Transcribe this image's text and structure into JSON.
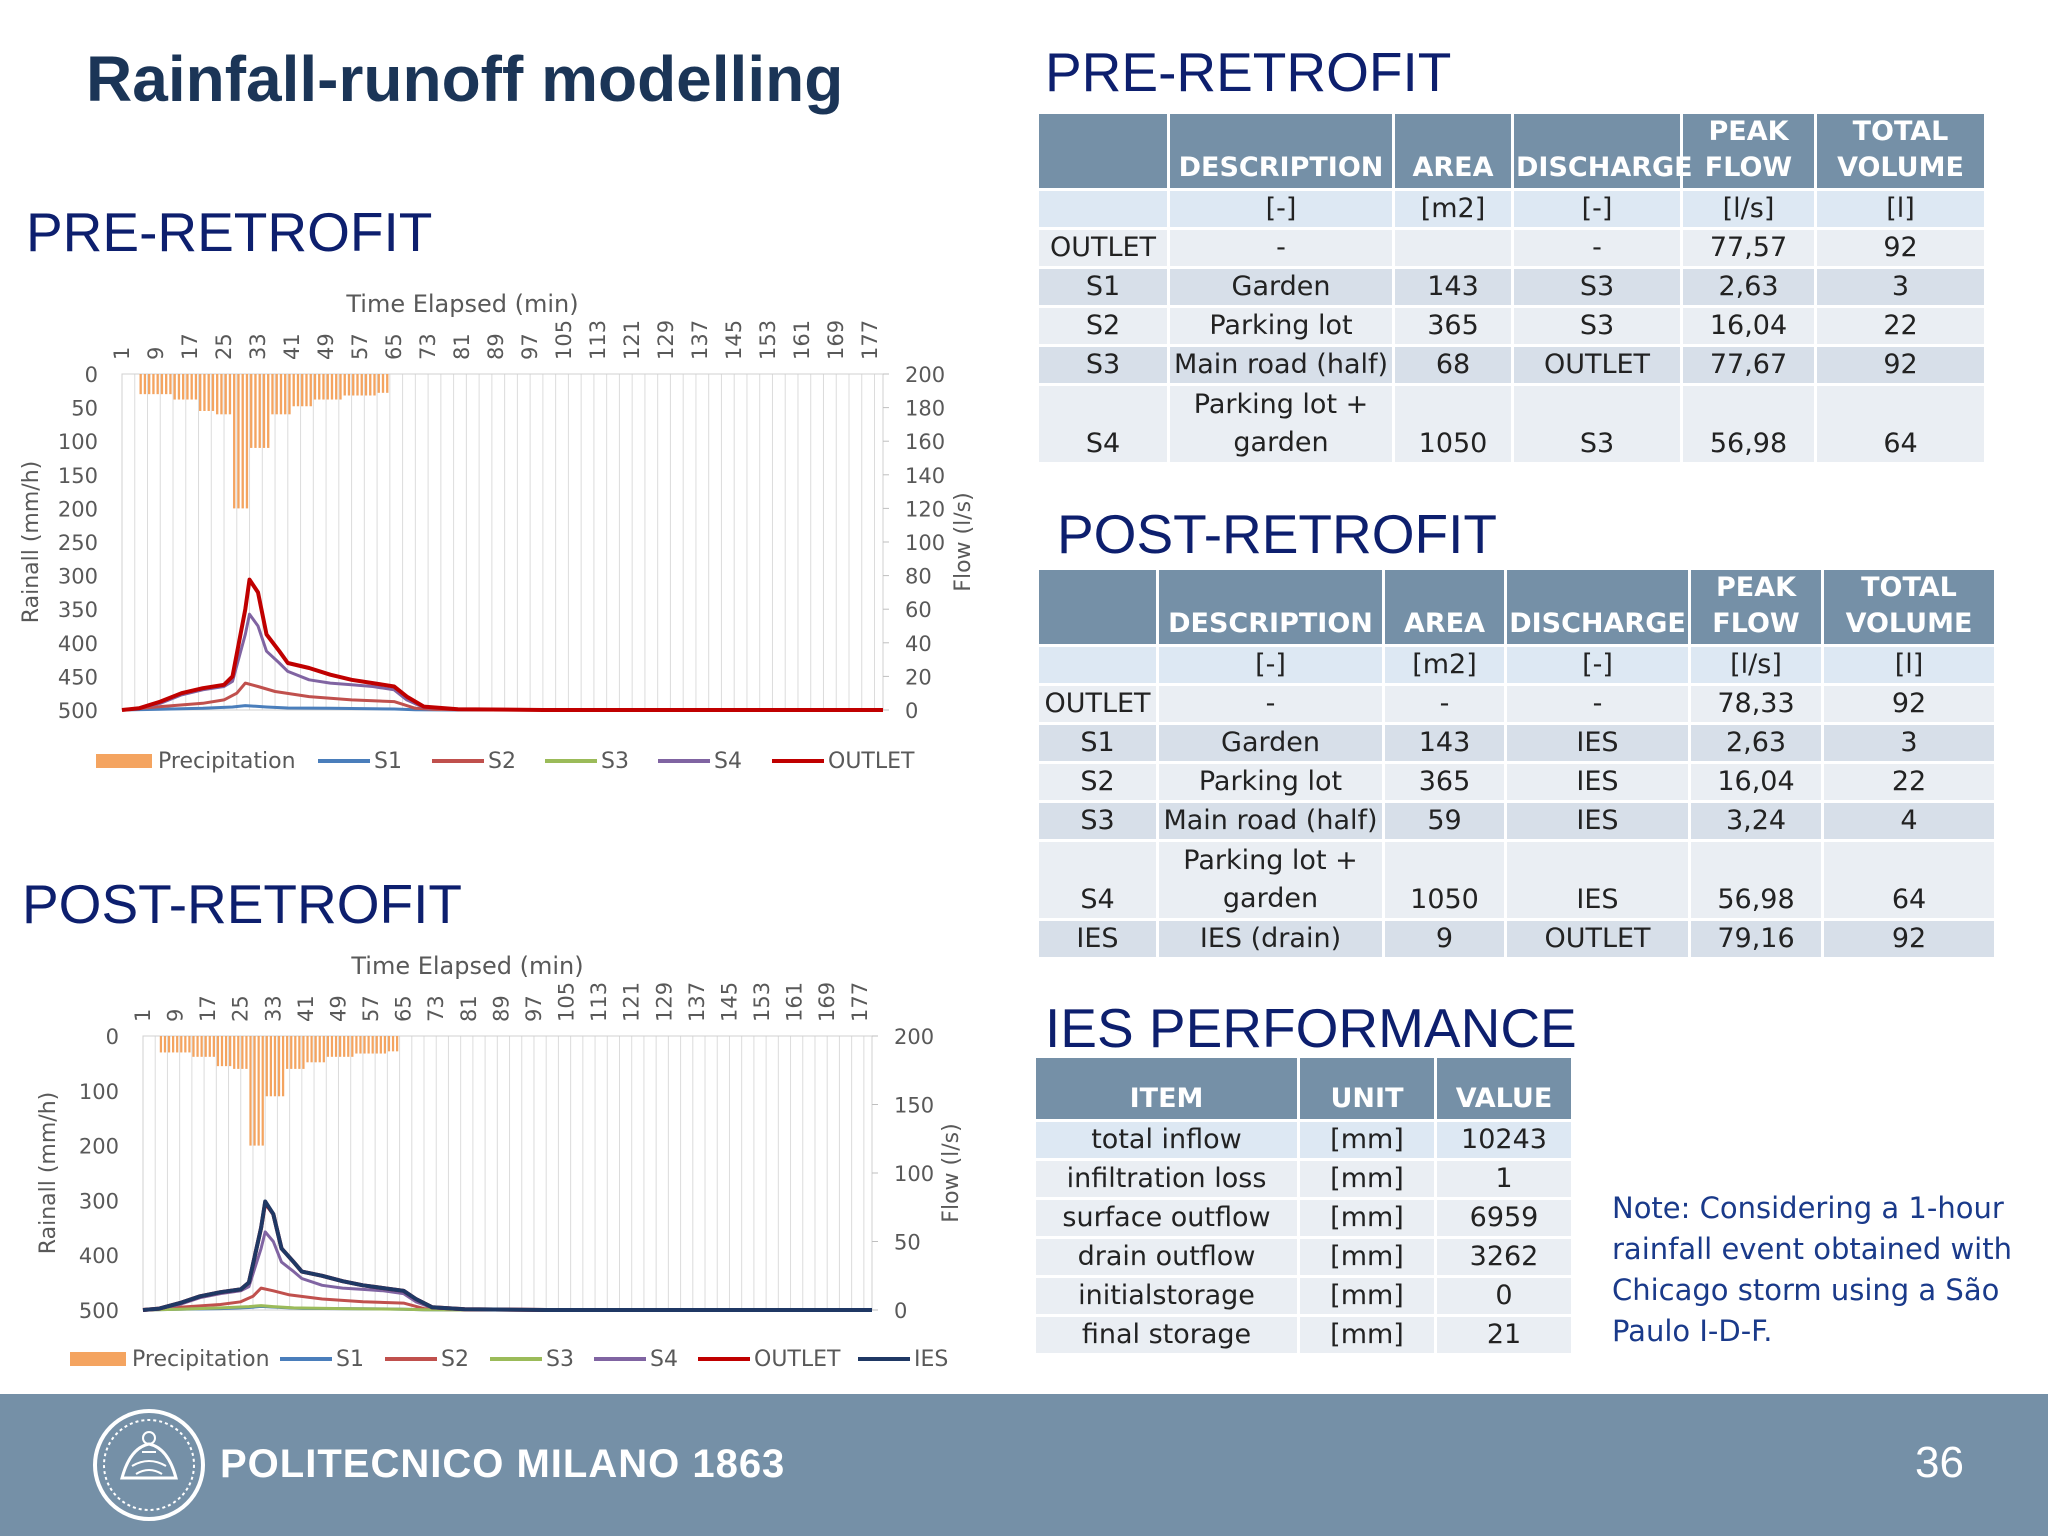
{
  "slide": {
    "title": "Rainfall-runoff modelling",
    "page_number": "36",
    "footer_brand": "POLITECNICO MILANO 1863",
    "note": "Note: Considering a 1-hour rainfall event obtained with Chicago storm using a São Paulo I-D-F."
  },
  "sections": {
    "pre_left": "PRE-RETROFIT",
    "post_left": "POST-RETROFIT",
    "pre_table": "PRE-RETROFIT",
    "post_table": "POST-RETROFIT",
    "ies": "IES PERFORMANCE"
  },
  "colors": {
    "header_fill": "#7590a7",
    "precipitation": "#f4a460",
    "S1": "#4a7ebb",
    "S2": "#c0504d",
    "S3": "#9bbb59",
    "S4": "#8064a2",
    "OUTLET": "#c00000",
    "IES": "#1f3864"
  },
  "pre_table": {
    "headers": [
      "",
      "DESCRIPTION",
      "AREA",
      "DISCHARGE",
      "PEAK FLOW",
      "TOTAL VOLUME"
    ],
    "rows": [
      [
        "",
        "[-]",
        "[m2]",
        "[-]",
        "[l/s]",
        "[l]"
      ],
      [
        "OUTLET",
        "-",
        "",
        "-",
        "77,57",
        "92"
      ],
      [
        "S1",
        "Garden",
        "143",
        "S3",
        "2,63",
        "3"
      ],
      [
        "S2",
        "Parking lot",
        "365",
        "S3",
        "16,04",
        "22"
      ],
      [
        "S3",
        "Main road (half)",
        "68",
        "OUTLET",
        "77,67",
        "92"
      ],
      [
        "S4",
        "Parking lot + garden",
        "1050",
        "S3",
        "56,98",
        "64"
      ]
    ]
  },
  "post_table": {
    "headers": [
      "",
      "DESCRIPTION",
      "AREA",
      "DISCHARGE",
      "PEAK FLOW",
      "TOTAL VOLUME"
    ],
    "rows": [
      [
        "",
        "[-]",
        "[m2]",
        "[-]",
        "[l/s]",
        "[l]"
      ],
      [
        "OUTLET",
        "-",
        "-",
        "-",
        "78,33",
        "92"
      ],
      [
        "S1",
        "Garden",
        "143",
        "IES",
        "2,63",
        "3"
      ],
      [
        "S2",
        "Parking lot",
        "365",
        "IES",
        "16,04",
        "22"
      ],
      [
        "S3",
        "Main road (half)",
        "59",
        "IES",
        "3,24",
        "4"
      ],
      [
        "S4",
        "Parking lot + garden",
        "1050",
        "IES",
        "56,98",
        "64"
      ],
      [
        "IES",
        "IES (drain)",
        "9",
        "OUTLET",
        "79,16",
        "92"
      ]
    ]
  },
  "ies_table": {
    "headers": [
      "ITEM",
      "UNIT",
      "VALUE"
    ],
    "rows": [
      [
        "total inflow",
        "[mm]",
        "10243"
      ],
      [
        "infiltration loss",
        "[mm]",
        "1"
      ],
      [
        "surface outflow",
        "[mm]",
        "6959"
      ],
      [
        "drain outflow",
        "[mm]",
        "3262"
      ],
      [
        "initialstorage",
        "[mm]",
        "0"
      ],
      [
        "final storage",
        "[mm]",
        "21"
      ]
    ]
  },
  "chart_data": [
    {
      "type": "bar+line",
      "title": "",
      "xlabel": "Time Elapsed (min)",
      "ylabel_left": "Rainall (mm/h)",
      "ylabel_right": "Flow (l/s)",
      "x_ticks": [
        "1",
        "9",
        "17",
        "25",
        "33",
        "41",
        "49",
        "57",
        "65",
        "73",
        "81",
        "89",
        "97",
        "105",
        "113",
        "121",
        "129",
        "137",
        "145",
        "153",
        "161",
        "169",
        "177"
      ],
      "x_range": [
        1,
        180
      ],
      "left_ticks": [
        "0",
        "50",
        "100",
        "150",
        "200",
        "250",
        "300",
        "350",
        "400",
        "450",
        "500"
      ],
      "left_range": [
        0,
        500
      ],
      "left_inverted": true,
      "right_ticks": [
        "0",
        "20",
        "40",
        "60",
        "80",
        "100",
        "120",
        "140",
        "160",
        "180",
        "200"
      ],
      "right_range": [
        0,
        200
      ],
      "legend_position": "bottom",
      "legend": [
        "Precipitation",
        "S1",
        "S2",
        "S3",
        "S4",
        "OUTLET"
      ],
      "precipitation": {
        "name": "Precipitation",
        "blocks": [
          {
            "x_start": 5,
            "x_end": 13,
            "value": 30
          },
          {
            "x_start": 13,
            "x_end": 19,
            "value": 38
          },
          {
            "x_start": 19,
            "x_end": 23,
            "value": 55
          },
          {
            "x_start": 23,
            "x_end": 27,
            "value": 60
          },
          {
            "x_start": 27,
            "x_end": 31,
            "value": 200
          },
          {
            "x_start": 31,
            "x_end": 36,
            "value": 110
          },
          {
            "x_start": 36,
            "x_end": 41,
            "value": 60
          },
          {
            "x_start": 41,
            "x_end": 46,
            "value": 48
          },
          {
            "x_start": 46,
            "x_end": 53,
            "value": 38
          },
          {
            "x_start": 53,
            "x_end": 61,
            "value": 32
          },
          {
            "x_start": 61,
            "x_end": 64,
            "value": 28
          }
        ]
      },
      "series": [
        {
          "name": "S1",
          "x": [
            1,
            10,
            20,
            27,
            30,
            35,
            40,
            50,
            60,
            65,
            70,
            80,
            100,
            180
          ],
          "y": [
            0,
            0.5,
            1,
            1.8,
            2.6,
            1.8,
            1.2,
            1,
            0.8,
            0.6,
            0.2,
            0,
            0,
            0
          ]
        },
        {
          "name": "S2",
          "x": [
            1,
            10,
            20,
            25,
            28,
            30,
            33,
            37,
            45,
            55,
            65,
            70,
            75,
            100,
            180
          ],
          "y": [
            0,
            2,
            4,
            6,
            10,
            16,
            14,
            11,
            8,
            6,
            5,
            1,
            0.3,
            0,
            0
          ]
        },
        {
          "name": "S3",
          "x": [
            1,
            5,
            10,
            15,
            20,
            25,
            27,
            30,
            31,
            33,
            35,
            38,
            40,
            45,
            50,
            55,
            60,
            65,
            68,
            72,
            80,
            100,
            180
          ],
          "y": [
            0,
            1,
            5,
            10,
            13,
            15,
            20,
            60,
            77.7,
            70,
            45,
            35,
            28,
            25,
            21,
            18,
            16,
            14,
            8,
            2,
            0.5,
            0,
            0
          ]
        },
        {
          "name": "S4",
          "x": [
            1,
            5,
            10,
            15,
            20,
            25,
            27,
            30,
            31,
            33,
            35,
            38,
            40,
            45,
            50,
            55,
            60,
            65,
            68,
            72,
            80,
            100,
            180
          ],
          "y": [
            0,
            1,
            4,
            9,
            12,
            14,
            17,
            45,
            57,
            50,
            35,
            28,
            23,
            18,
            16,
            15,
            14,
            12,
            6,
            1.5,
            0.3,
            0,
            0
          ]
        },
        {
          "name": "OUTLET",
          "x": [
            1,
            5,
            10,
            15,
            20,
            25,
            27,
            30,
            31,
            33,
            35,
            38,
            40,
            45,
            50,
            55,
            60,
            65,
            68,
            72,
            80,
            100,
            180
          ],
          "y": [
            0,
            1,
            5,
            10,
            13,
            15,
            20,
            60,
            77.6,
            70,
            45,
            35,
            28,
            25,
            21,
            18,
            16,
            14,
            8,
            2,
            0.5,
            0,
            0
          ]
        }
      ]
    },
    {
      "type": "bar+line",
      "title": "",
      "xlabel": "Time Elapsed (min)",
      "ylabel_left": "Rainall (mm/h)",
      "ylabel_right": "Flow (l/s)",
      "x_ticks": [
        "1",
        "9",
        "17",
        "25",
        "33",
        "41",
        "49",
        "57",
        "65",
        "73",
        "81",
        "89",
        "97",
        "105",
        "113",
        "121",
        "129",
        "137",
        "145",
        "153",
        "161",
        "169",
        "177"
      ],
      "x_range": [
        1,
        180
      ],
      "left_ticks": [
        "0",
        "100",
        "200",
        "300",
        "400",
        "500"
      ],
      "left_range": [
        0,
        500
      ],
      "left_inverted": true,
      "right_ticks": [
        "0",
        "50",
        "100",
        "150",
        "200"
      ],
      "right_range": [
        0,
        200
      ],
      "legend_position": "bottom",
      "legend": [
        "Precipitation",
        "S1",
        "S2",
        "S3",
        "S4",
        "OUTLET",
        "IES"
      ],
      "precipitation": {
        "name": "Precipitation",
        "blocks": [
          {
            "x_start": 5,
            "x_end": 13,
            "value": 30
          },
          {
            "x_start": 13,
            "x_end": 19,
            "value": 38
          },
          {
            "x_start": 19,
            "x_end": 23,
            "value": 55
          },
          {
            "x_start": 23,
            "x_end": 27,
            "value": 60
          },
          {
            "x_start": 27,
            "x_end": 31,
            "value": 200
          },
          {
            "x_start": 31,
            "x_end": 36,
            "value": 110
          },
          {
            "x_start": 36,
            "x_end": 41,
            "value": 60
          },
          {
            "x_start": 41,
            "x_end": 46,
            "value": 48
          },
          {
            "x_start": 46,
            "x_end": 53,
            "value": 38
          },
          {
            "x_start": 53,
            "x_end": 61,
            "value": 32
          },
          {
            "x_start": 61,
            "x_end": 64,
            "value": 28
          }
        ]
      },
      "series": [
        {
          "name": "S1",
          "x": [
            1,
            10,
            20,
            27,
            30,
            35,
            40,
            50,
            60,
            65,
            70,
            80,
            100,
            180
          ],
          "y": [
            0,
            0.5,
            1,
            1.8,
            2.6,
            1.8,
            1.2,
            1,
            0.8,
            0.6,
            0.2,
            0,
            0,
            0
          ]
        },
        {
          "name": "S2",
          "x": [
            1,
            10,
            20,
            25,
            28,
            30,
            33,
            37,
            45,
            55,
            65,
            70,
            75,
            100,
            180
          ],
          "y": [
            0,
            2,
            4,
            6,
            10,
            16,
            14,
            11,
            8,
            6,
            5,
            1,
            0.3,
            0,
            0
          ]
        },
        {
          "name": "S3",
          "x": [
            1,
            10,
            20,
            27,
            30,
            33,
            38,
            50,
            65,
            70,
            80,
            180
          ],
          "y": [
            0,
            0.5,
            1.5,
            2.5,
            3.2,
            2.5,
            1.5,
            1,
            0.5,
            0.2,
            0,
            0
          ]
        },
        {
          "name": "S4",
          "x": [
            1,
            5,
            10,
            15,
            20,
            25,
            27,
            30,
            31,
            33,
            35,
            38,
            40,
            45,
            50,
            55,
            60,
            65,
            68,
            72,
            80,
            100,
            180
          ],
          "y": [
            0,
            1,
            4,
            9,
            12,
            14,
            17,
            45,
            57,
            50,
            35,
            28,
            23,
            18,
            16,
            15,
            14,
            12,
            6,
            1.5,
            0.3,
            0,
            0
          ]
        },
        {
          "name": "OUTLET",
          "x": [
            1,
            5,
            10,
            15,
            20,
            25,
            27,
            30,
            31,
            33,
            35,
            38,
            40,
            45,
            50,
            55,
            60,
            65,
            68,
            72,
            80,
            100,
            180
          ],
          "y": [
            0,
            1,
            5,
            10,
            13,
            15,
            20,
            60,
            78.3,
            70,
            45,
            35,
            28,
            25,
            21,
            18,
            16,
            14,
            8,
            2,
            0.5,
            0,
            0
          ]
        },
        {
          "name": "IES",
          "x": [
            1,
            5,
            10,
            15,
            20,
            25,
            27,
            30,
            31,
            33,
            35,
            38,
            40,
            45,
            50,
            55,
            60,
            65,
            68,
            72,
            80,
            100,
            180
          ],
          "y": [
            0,
            1,
            5,
            10,
            13,
            15,
            20,
            60,
            79.2,
            70,
            45,
            35,
            28,
            25,
            21,
            18,
            16,
            14,
            8,
            2,
            0.5,
            0,
            0
          ]
        }
      ]
    }
  ]
}
